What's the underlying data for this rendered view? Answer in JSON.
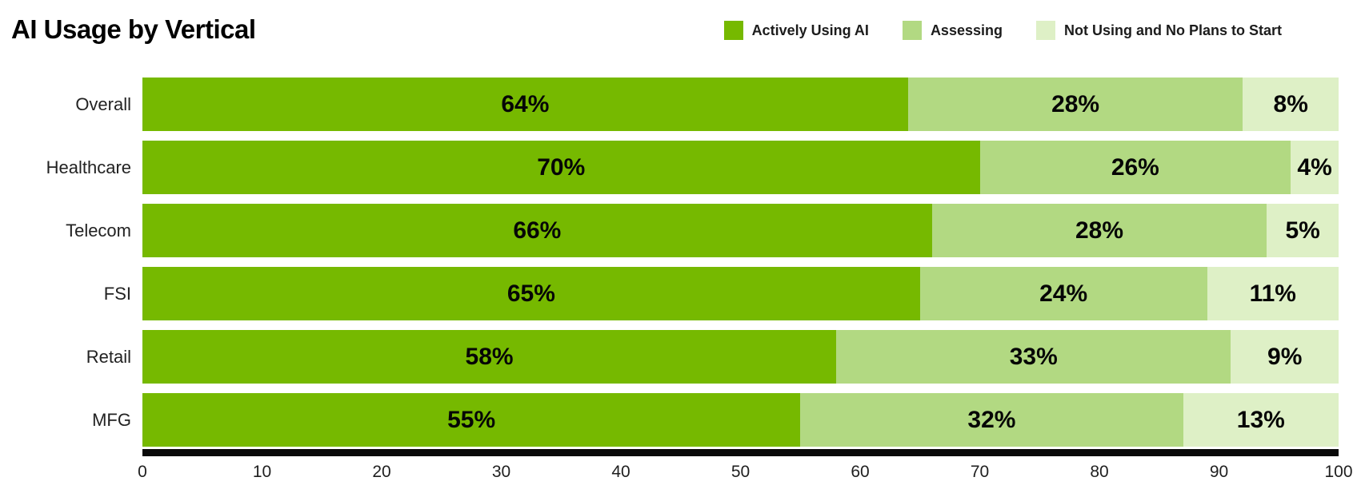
{
  "title": "AI Usage by Vertical",
  "colors": {
    "series_active": "#76b900",
    "series_assessing": "#b2d982",
    "series_not_using": "#def0c6",
    "axis_line": "#0a0a0a",
    "text": "#000000"
  },
  "chart_data": {
    "type": "bar",
    "stacked": true,
    "orientation": "horizontal",
    "title": "AI Usage by Vertical",
    "xlabel": "",
    "ylabel": "",
    "xlim": [
      0,
      100
    ],
    "x_ticks": [
      0,
      10,
      20,
      30,
      40,
      50,
      60,
      70,
      80,
      90,
      100
    ],
    "grid": false,
    "legend_position": "top-right",
    "value_suffix": "%",
    "categories": [
      "Overall",
      "Healthcare",
      "Telecom",
      "FSI",
      "Retail",
      "MFG"
    ],
    "series": [
      {
        "name": "Actively Using AI",
        "color": "#76b900",
        "values": [
          64,
          70,
          66,
          65,
          58,
          55
        ]
      },
      {
        "name": "Assessing",
        "color": "#b2d982",
        "values": [
          28,
          26,
          28,
          24,
          33,
          32
        ]
      },
      {
        "name": "Not Using and No Plans to Start",
        "color": "#def0c6",
        "values": [
          8,
          4,
          5,
          11,
          9,
          13
        ]
      }
    ]
  }
}
